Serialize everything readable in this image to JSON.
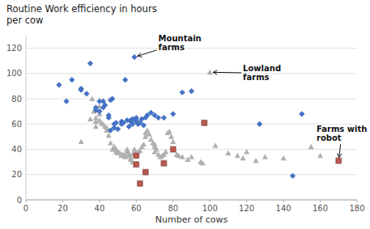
{
  "chart_data": {
    "type": "scatter",
    "title": "Routine Work efficiency in hours",
    "subtitle": "per cow",
    "x_label": "Number of cows",
    "xlim": [
      0,
      180
    ],
    "ylim": [
      0,
      130
    ],
    "xticks": [
      0,
      20,
      40,
      60,
      80,
      100,
      120,
      140,
      160,
      180
    ],
    "yticks": [
      0,
      20,
      40,
      60,
      80,
      100,
      120
    ],
    "grid": true,
    "series": [
      {
        "color": "#B0B0B0",
        "marker": "triangle",
        "x": [
          30,
          35,
          36,
          37,
          38,
          38,
          38,
          40,
          40,
          40,
          41,
          42,
          43,
          44,
          44,
          45,
          46,
          47,
          48,
          48,
          49,
          49,
          50,
          50,
          51,
          52,
          52,
          53,
          54,
          54,
          55,
          55,
          56,
          56,
          57,
          57,
          58,
          58,
          59,
          59,
          60,
          60,
          61,
          62,
          63,
          64,
          65,
          65,
          66,
          67,
          68,
          69,
          70,
          70,
          70,
          71,
          72,
          73,
          74,
          75,
          76,
          77,
          78,
          79,
          80,
          80,
          82,
          83,
          85,
          88,
          90,
          95,
          96,
          100,
          103,
          110,
          115,
          118,
          120,
          125,
          130,
          140,
          155,
          160
        ],
        "values": [
          46,
          64,
          80,
          70,
          65,
          62,
          58,
          74,
          68,
          63,
          61,
          60,
          58,
          57,
          55,
          51,
          45,
          40,
          42,
          41,
          40,
          38,
          37,
          38,
          37,
          36,
          35,
          36,
          35,
          34,
          40,
          38,
          37,
          35,
          33,
          32,
          30,
          36,
          38,
          40,
          36,
          37,
          38,
          39,
          42,
          44,
          50,
          53,
          55,
          52,
          48,
          45,
          44,
          42,
          38,
          40,
          36,
          34,
          35,
          36,
          38,
          53,
          54,
          50,
          46,
          40,
          36,
          35,
          34,
          32,
          34,
          30,
          29,
          101,
          43,
          37,
          35,
          33,
          38,
          31,
          34,
          33,
          42,
          35
        ]
      },
      {
        "color": "#4472C4",
        "marker": "diamond",
        "x": [
          18,
          22,
          25,
          30,
          30,
          33,
          35,
          38,
          38,
          40,
          40,
          42,
          42,
          43,
          45,
          45,
          46,
          46,
          47,
          48,
          48,
          49,
          50,
          52,
          52,
          53,
          54,
          55,
          56,
          57,
          57,
          58,
          58,
          59,
          60,
          60,
          60,
          61,
          62,
          63,
          64,
          65,
          66,
          68,
          70,
          72,
          75,
          80,
          85,
          90,
          127,
          145,
          150
        ],
        "values": [
          91,
          78,
          95,
          87,
          88,
          84,
          108,
          71,
          73,
          78,
          70,
          78,
          73,
          75,
          65,
          67,
          55,
          79,
          80,
          60,
          57,
          61,
          56,
          60,
          62,
          61,
          95,
          63,
          58,
          63,
          62,
          60,
          64,
          113,
          63,
          65,
          62,
          60,
          61,
          64,
          59,
          65,
          67,
          69,
          67,
          65,
          65,
          68,
          85,
          86,
          60,
          19,
          68
        ]
      },
      {
        "color": "#C0392B",
        "marker": "square",
        "x": [
          60,
          60,
          62,
          65,
          75,
          80,
          97,
          170
        ],
        "values": [
          35,
          28,
          13,
          22,
          29,
          40,
          61,
          31
        ]
      }
    ],
    "annotations": [
      {
        "text": "Mountain\nfarms",
        "xy": [
          59,
          113
        ],
        "xytext": [
          72,
          124
        ]
      },
      {
        "text": "Lowland\nfarms",
        "xy": [
          100,
          101
        ],
        "xytext": [
          118,
          100
        ]
      },
      {
        "text": "Farms with\nrobot",
        "xy": [
          170,
          31
        ],
        "xytext": [
          158,
          52
        ]
      }
    ]
  }
}
